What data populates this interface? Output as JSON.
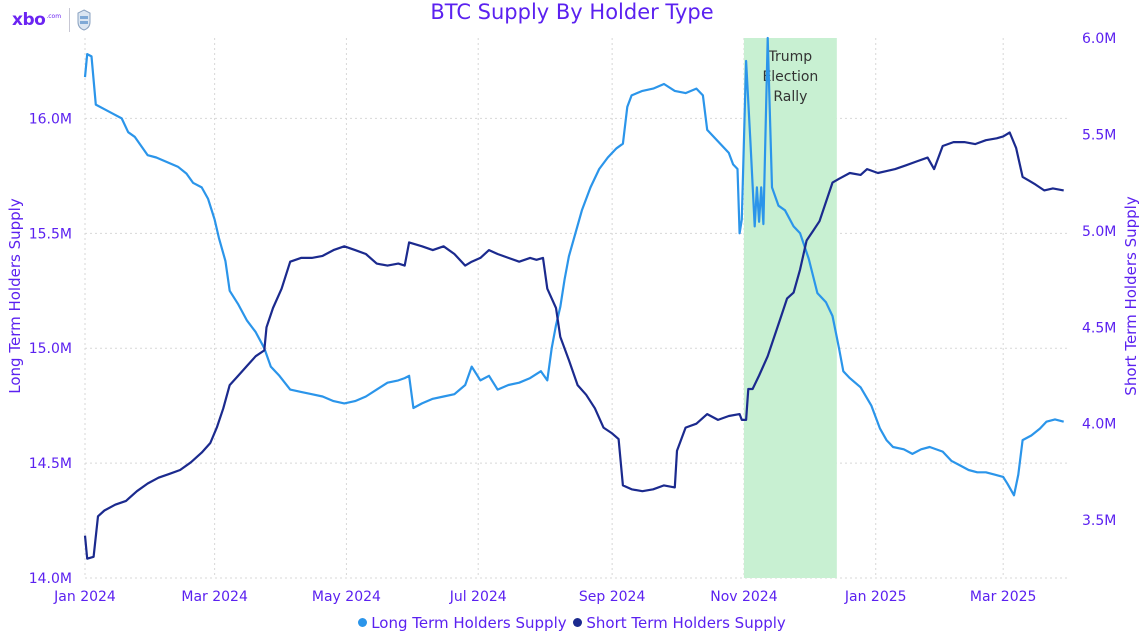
{
  "brand": {
    "logo_text": "xbo",
    "logo_sup": ".com"
  },
  "colors": {
    "title": "#5b21f0",
    "long_term": "#2b95ea",
    "short_term": "#1b2a8e",
    "highlight": "#c8f0d2",
    "grid": "#d7d7d7"
  },
  "chart_data": {
    "type": "line",
    "title": "BTC Supply By Holder Type",
    "y_left_label": "Long Term Holders Supply",
    "y_right_label": "Short Term Holders Supply",
    "y_left_lim": [
      14000000,
      16350000
    ],
    "y_right_lim": [
      3200000,
      6000000
    ],
    "y_left_ticks": [
      14000000,
      14500000,
      15000000,
      15500000,
      16000000
    ],
    "y_left_tick_labels": [
      "14.0M",
      "14.5M",
      "15.0M",
      "15.5M",
      "16.0M"
    ],
    "y_right_ticks": [
      3500000,
      4000000,
      4500000,
      5000000,
      5500000,
      6000000
    ],
    "y_right_tick_labels": [
      "3.5M",
      "4.0M",
      "4.5M",
      "5.0M",
      "5.5M",
      "6.0M"
    ],
    "x_ticks": [
      "2024-01-01",
      "2024-03-01",
      "2024-05-01",
      "2024-07-01",
      "2024-09-01",
      "2024-11-01",
      "2025-01-01",
      "2025-03-01"
    ],
    "x_tick_labels": [
      "Jan 2024",
      "Mar 2024",
      "May 2024",
      "Jul 2024",
      "Sep 2024",
      "Nov 2024",
      "Jan 2025",
      "Mar 2025"
    ],
    "x_range": [
      "2024-01-01",
      "2025-03-31"
    ],
    "grid": true,
    "legend_position": "bottom",
    "annotation": {
      "text_lines": [
        "Trump",
        "Election",
        "Rally"
      ],
      "x_start": "2024-11-01",
      "x_end": "2024-12-14"
    },
    "series": [
      {
        "name": "Long Term Holders Supply",
        "axis": "left",
        "points": [
          [
            "2024-01-01",
            16180000
          ],
          [
            "2024-01-02",
            16280000
          ],
          [
            "2024-01-04",
            16270000
          ],
          [
            "2024-01-06",
            16060000
          ],
          [
            "2024-01-10",
            16040000
          ],
          [
            "2024-01-14",
            16020000
          ],
          [
            "2024-01-18",
            16000000
          ],
          [
            "2024-01-21",
            15940000
          ],
          [
            "2024-01-24",
            15920000
          ],
          [
            "2024-01-27",
            15880000
          ],
          [
            "2024-01-30",
            15840000
          ],
          [
            "2024-02-03",
            15830000
          ],
          [
            "2024-02-08",
            15810000
          ],
          [
            "2024-02-13",
            15790000
          ],
          [
            "2024-02-17",
            15760000
          ],
          [
            "2024-02-20",
            15720000
          ],
          [
            "2024-02-24",
            15700000
          ],
          [
            "2024-02-27",
            15650000
          ],
          [
            "2024-03-01",
            15560000
          ],
          [
            "2024-03-03",
            15480000
          ],
          [
            "2024-03-06",
            15380000
          ],
          [
            "2024-03-08",
            15250000
          ],
          [
            "2024-03-12",
            15190000
          ],
          [
            "2024-03-16",
            15120000
          ],
          [
            "2024-03-20",
            15070000
          ],
          [
            "2024-03-24",
            15000000
          ],
          [
            "2024-03-27",
            14920000
          ],
          [
            "2024-03-31",
            14880000
          ],
          [
            "2024-04-05",
            14820000
          ],
          [
            "2024-04-10",
            14810000
          ],
          [
            "2024-04-15",
            14800000
          ],
          [
            "2024-04-20",
            14790000
          ],
          [
            "2024-04-25",
            14770000
          ],
          [
            "2024-04-30",
            14760000
          ],
          [
            "2024-05-05",
            14770000
          ],
          [
            "2024-05-10",
            14790000
          ],
          [
            "2024-05-15",
            14820000
          ],
          [
            "2024-05-20",
            14850000
          ],
          [
            "2024-05-25",
            14860000
          ],
          [
            "2024-05-28",
            14870000
          ],
          [
            "2024-05-30",
            14880000
          ],
          [
            "2024-06-01",
            14740000
          ],
          [
            "2024-06-05",
            14760000
          ],
          [
            "2024-06-10",
            14780000
          ],
          [
            "2024-06-15",
            14790000
          ],
          [
            "2024-06-20",
            14800000
          ],
          [
            "2024-06-25",
            14840000
          ],
          [
            "2024-06-28",
            14920000
          ],
          [
            "2024-07-02",
            14860000
          ],
          [
            "2024-07-06",
            14880000
          ],
          [
            "2024-07-10",
            14820000
          ],
          [
            "2024-07-15",
            14840000
          ],
          [
            "2024-07-20",
            14850000
          ],
          [
            "2024-07-25",
            14870000
          ],
          [
            "2024-07-30",
            14900000
          ],
          [
            "2024-08-02",
            14860000
          ],
          [
            "2024-08-04",
            15000000
          ],
          [
            "2024-08-06",
            15100000
          ],
          [
            "2024-08-08",
            15180000
          ],
          [
            "2024-08-10",
            15300000
          ],
          [
            "2024-08-12",
            15400000
          ],
          [
            "2024-08-15",
            15500000
          ],
          [
            "2024-08-18",
            15600000
          ],
          [
            "2024-08-22",
            15700000
          ],
          [
            "2024-08-26",
            15780000
          ],
          [
            "2024-08-30",
            15830000
          ],
          [
            "2024-09-03",
            15870000
          ],
          [
            "2024-09-06",
            15890000
          ],
          [
            "2024-09-08",
            16050000
          ],
          [
            "2024-09-10",
            16100000
          ],
          [
            "2024-09-15",
            16120000
          ],
          [
            "2024-09-20",
            16130000
          ],
          [
            "2024-09-25",
            16150000
          ],
          [
            "2024-09-30",
            16120000
          ],
          [
            "2024-10-05",
            16110000
          ],
          [
            "2024-10-10",
            16130000
          ],
          [
            "2024-10-13",
            16100000
          ],
          [
            "2024-10-15",
            15950000
          ],
          [
            "2024-10-20",
            15900000
          ],
          [
            "2024-10-25",
            15850000
          ],
          [
            "2024-10-27",
            15800000
          ],
          [
            "2024-10-29",
            15780000
          ],
          [
            "2024-10-30",
            15500000
          ],
          [
            "2024-10-31",
            15560000
          ],
          [
            "2024-11-02",
            16250000
          ],
          [
            "2024-11-04",
            15900000
          ],
          [
            "2024-11-06",
            15530000
          ],
          [
            "2024-11-07",
            15700000
          ],
          [
            "2024-11-08",
            15550000
          ],
          [
            "2024-11-09",
            15700000
          ],
          [
            "2024-11-10",
            15540000
          ],
          [
            "2024-11-12",
            16350000
          ],
          [
            "2024-11-14",
            15700000
          ],
          [
            "2024-11-17",
            15620000
          ],
          [
            "2024-11-20",
            15600000
          ],
          [
            "2024-11-24",
            15530000
          ],
          [
            "2024-11-27",
            15500000
          ],
          [
            "2024-12-01",
            15390000
          ],
          [
            "2024-12-05",
            15240000
          ],
          [
            "2024-12-09",
            15200000
          ],
          [
            "2024-12-12",
            15140000
          ],
          [
            "2024-12-15",
            15000000
          ],
          [
            "2024-12-17",
            14900000
          ],
          [
            "2024-12-20",
            14870000
          ],
          [
            "2024-12-25",
            14830000
          ],
          [
            "2024-12-30",
            14750000
          ],
          [
            "2025-01-03",
            14650000
          ],
          [
            "2025-01-06",
            14600000
          ],
          [
            "2025-01-09",
            14570000
          ],
          [
            "2025-01-14",
            14560000
          ],
          [
            "2025-01-18",
            14540000
          ],
          [
            "2025-01-22",
            14560000
          ],
          [
            "2025-01-26",
            14570000
          ],
          [
            "2025-02-01",
            14550000
          ],
          [
            "2025-02-05",
            14510000
          ],
          [
            "2025-02-09",
            14490000
          ],
          [
            "2025-02-13",
            14470000
          ],
          [
            "2025-02-17",
            14460000
          ],
          [
            "2025-02-21",
            14460000
          ],
          [
            "2025-02-25",
            14450000
          ],
          [
            "2025-03-01",
            14440000
          ],
          [
            "2025-03-03",
            14410000
          ],
          [
            "2025-03-06",
            14360000
          ],
          [
            "2025-03-08",
            14450000
          ],
          [
            "2025-03-10",
            14600000
          ],
          [
            "2025-03-14",
            14620000
          ],
          [
            "2025-03-18",
            14650000
          ],
          [
            "2025-03-21",
            14680000
          ],
          [
            "2025-03-25",
            14690000
          ],
          [
            "2025-03-29",
            14680000
          ]
        ]
      },
      {
        "name": "Short Term Holders Supply",
        "axis": "right",
        "points": [
          [
            "2024-01-01",
            3420000
          ],
          [
            "2024-01-02",
            3300000
          ],
          [
            "2024-01-05",
            3310000
          ],
          [
            "2024-01-07",
            3520000
          ],
          [
            "2024-01-10",
            3550000
          ],
          [
            "2024-01-15",
            3580000
          ],
          [
            "2024-01-20",
            3600000
          ],
          [
            "2024-01-25",
            3650000
          ],
          [
            "2024-01-30",
            3690000
          ],
          [
            "2024-02-04",
            3720000
          ],
          [
            "2024-02-09",
            3740000
          ],
          [
            "2024-02-14",
            3760000
          ],
          [
            "2024-02-19",
            3800000
          ],
          [
            "2024-02-24",
            3850000
          ],
          [
            "2024-02-28",
            3900000
          ],
          [
            "2024-03-02",
            3980000
          ],
          [
            "2024-03-05",
            4080000
          ],
          [
            "2024-03-08",
            4200000
          ],
          [
            "2024-03-12",
            4250000
          ],
          [
            "2024-03-16",
            4300000
          ],
          [
            "2024-03-20",
            4350000
          ],
          [
            "2024-03-24",
            4380000
          ],
          [
            "2024-03-25",
            4500000
          ],
          [
            "2024-03-28",
            4600000
          ],
          [
            "2024-04-01",
            4700000
          ],
          [
            "2024-04-05",
            4840000
          ],
          [
            "2024-04-10",
            4860000
          ],
          [
            "2024-04-15",
            4860000
          ],
          [
            "2024-04-20",
            4870000
          ],
          [
            "2024-04-25",
            4900000
          ],
          [
            "2024-04-30",
            4920000
          ],
          [
            "2024-05-05",
            4900000
          ],
          [
            "2024-05-10",
            4880000
          ],
          [
            "2024-05-15",
            4830000
          ],
          [
            "2024-05-20",
            4820000
          ],
          [
            "2024-05-25",
            4830000
          ],
          [
            "2024-05-28",
            4820000
          ],
          [
            "2024-05-30",
            4940000
          ],
          [
            "2024-06-05",
            4920000
          ],
          [
            "2024-06-10",
            4900000
          ],
          [
            "2024-06-15",
            4920000
          ],
          [
            "2024-06-20",
            4880000
          ],
          [
            "2024-06-25",
            4820000
          ],
          [
            "2024-06-28",
            4840000
          ],
          [
            "2024-07-02",
            4860000
          ],
          [
            "2024-07-06",
            4900000
          ],
          [
            "2024-07-10",
            4880000
          ],
          [
            "2024-07-15",
            4860000
          ],
          [
            "2024-07-20",
            4840000
          ],
          [
            "2024-07-25",
            4860000
          ],
          [
            "2024-07-28",
            4850000
          ],
          [
            "2024-07-31",
            4860000
          ],
          [
            "2024-08-02",
            4700000
          ],
          [
            "2024-08-04",
            4650000
          ],
          [
            "2024-08-06",
            4600000
          ],
          [
            "2024-08-08",
            4450000
          ],
          [
            "2024-08-12",
            4330000
          ],
          [
            "2024-08-16",
            4200000
          ],
          [
            "2024-08-20",
            4150000
          ],
          [
            "2024-08-24",
            4080000
          ],
          [
            "2024-08-28",
            3980000
          ],
          [
            "2024-09-01",
            3950000
          ],
          [
            "2024-09-04",
            3920000
          ],
          [
            "2024-09-06",
            3680000
          ],
          [
            "2024-09-10",
            3660000
          ],
          [
            "2024-09-15",
            3650000
          ],
          [
            "2024-09-20",
            3660000
          ],
          [
            "2024-09-25",
            3680000
          ],
          [
            "2024-09-30",
            3670000
          ],
          [
            "2024-10-01",
            3860000
          ],
          [
            "2024-10-05",
            3980000
          ],
          [
            "2024-10-10",
            4000000
          ],
          [
            "2024-10-15",
            4050000
          ],
          [
            "2024-10-20",
            4020000
          ],
          [
            "2024-10-25",
            4040000
          ],
          [
            "2024-10-30",
            4050000
          ],
          [
            "2024-10-31",
            4020000
          ],
          [
            "2024-11-02",
            4020000
          ],
          [
            "2024-11-03",
            4180000
          ],
          [
            "2024-11-05",
            4180000
          ],
          [
            "2024-11-08",
            4250000
          ],
          [
            "2024-11-12",
            4350000
          ],
          [
            "2024-11-15",
            4450000
          ],
          [
            "2024-11-18",
            4550000
          ],
          [
            "2024-11-21",
            4650000
          ],
          [
            "2024-11-24",
            4680000
          ],
          [
            "2024-11-27",
            4800000
          ],
          [
            "2024-11-30",
            4950000
          ],
          [
            "2024-12-03",
            5000000
          ],
          [
            "2024-12-06",
            5050000
          ],
          [
            "2024-12-09",
            5150000
          ],
          [
            "2024-12-12",
            5250000
          ],
          [
            "2024-12-15",
            5270000
          ],
          [
            "2024-12-20",
            5300000
          ],
          [
            "2024-12-25",
            5290000
          ],
          [
            "2024-12-28",
            5320000
          ],
          [
            "2025-01-02",
            5300000
          ],
          [
            "2025-01-06",
            5310000
          ],
          [
            "2025-01-10",
            5320000
          ],
          [
            "2025-01-15",
            5340000
          ],
          [
            "2025-01-20",
            5360000
          ],
          [
            "2025-01-25",
            5380000
          ],
          [
            "2025-01-28",
            5320000
          ],
          [
            "2025-02-01",
            5440000
          ],
          [
            "2025-02-06",
            5460000
          ],
          [
            "2025-02-11",
            5460000
          ],
          [
            "2025-02-16",
            5450000
          ],
          [
            "2025-02-21",
            5470000
          ],
          [
            "2025-02-26",
            5480000
          ],
          [
            "2025-03-01",
            5490000
          ],
          [
            "2025-03-04",
            5510000
          ],
          [
            "2025-03-07",
            5430000
          ],
          [
            "2025-03-10",
            5280000
          ],
          [
            "2025-03-13",
            5260000
          ],
          [
            "2025-03-16",
            5240000
          ],
          [
            "2025-03-20",
            5210000
          ],
          [
            "2025-03-24",
            5220000
          ],
          [
            "2025-03-29",
            5210000
          ]
        ]
      }
    ]
  }
}
